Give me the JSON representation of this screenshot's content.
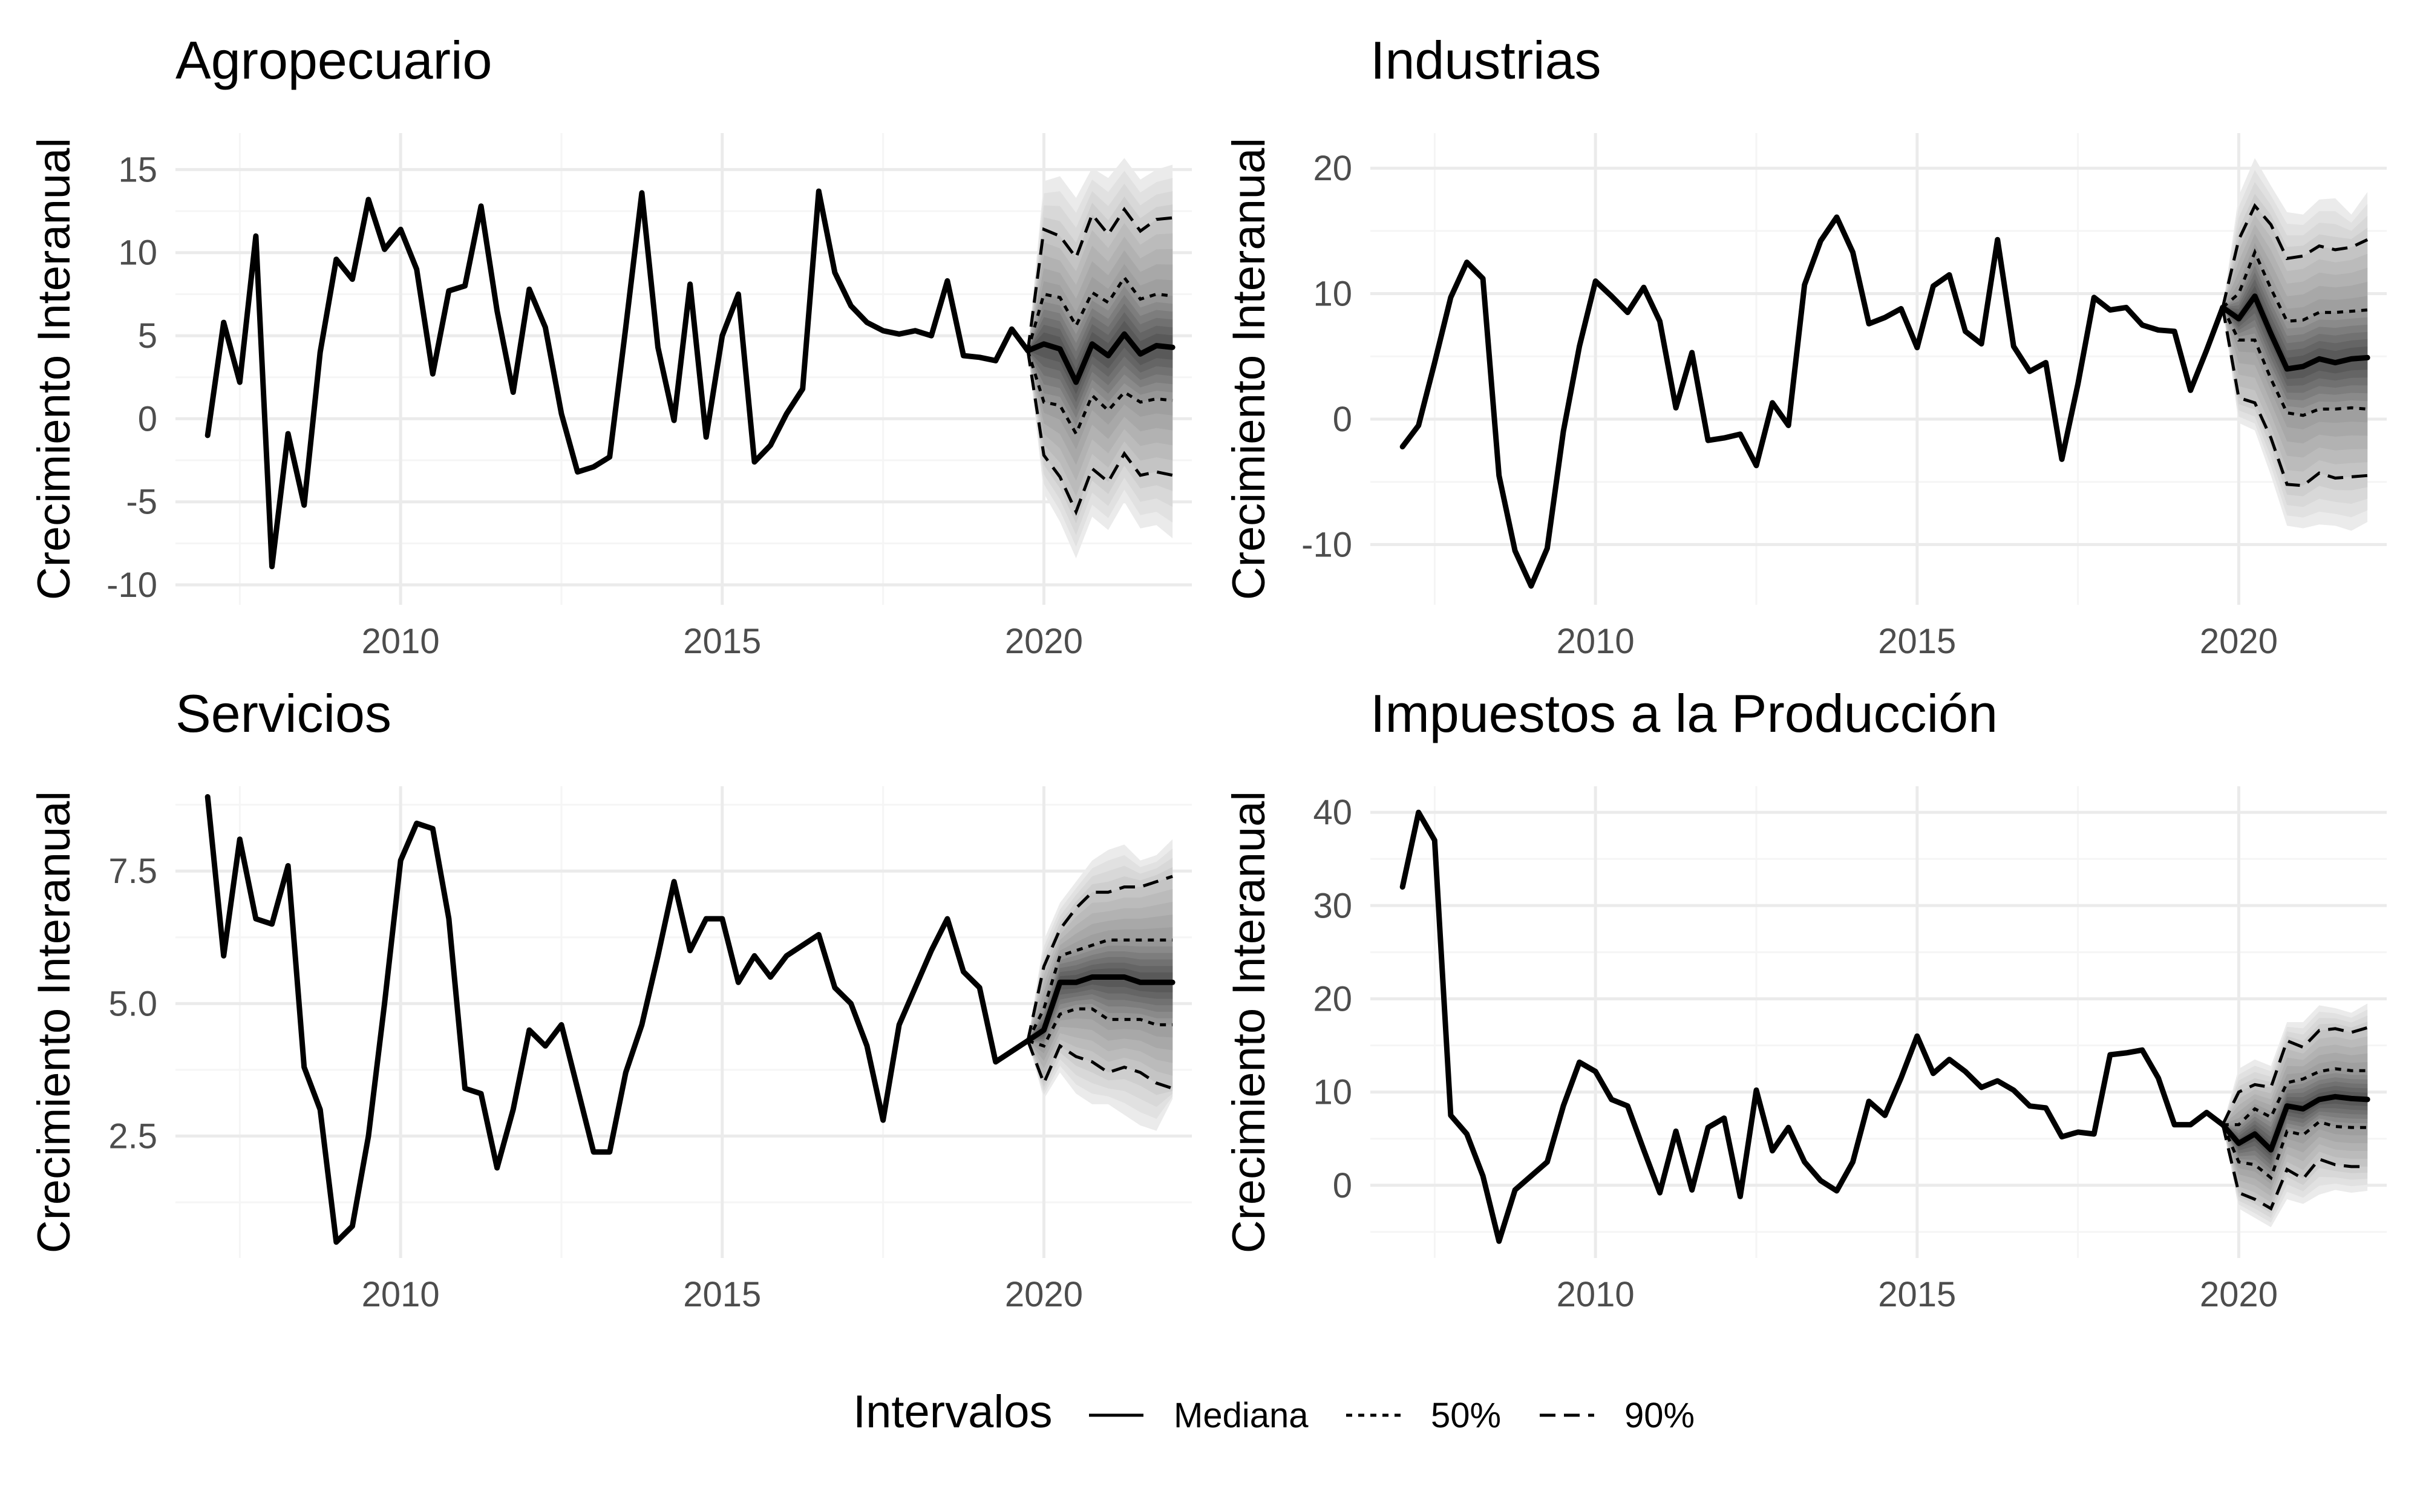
{
  "chart_data": [
    {
      "type": "line",
      "title": "Agropecuario",
      "ylabel": "Crecimiento Interanual",
      "xlabel": "",
      "xlim": [
        2006.5,
        2022.3
      ],
      "ylim": [
        -11.2,
        17.2
      ],
      "xticks": [
        2010,
        2015,
        2020
      ],
      "yticks": [
        -10,
        -5,
        0,
        5,
        10,
        15
      ],
      "grid": true,
      "historical": {
        "name": "Mediana",
        "x": [
          2007.0,
          2007.25,
          2007.5,
          2007.75,
          2008.0,
          2008.25,
          2008.5,
          2008.75,
          2009.0,
          2009.25,
          2009.5,
          2009.75,
          2010.0,
          2010.25,
          2010.5,
          2010.75,
          2011.0,
          2011.25,
          2011.5,
          2011.75,
          2012.0,
          2012.25,
          2012.5,
          2012.75,
          2013.0,
          2013.25,
          2013.5,
          2013.75,
          2014.0,
          2014.25,
          2014.5,
          2014.75,
          2015.0,
          2015.25,
          2015.5,
          2015.75,
          2016.0,
          2016.25,
          2016.5,
          2016.75,
          2017.0,
          2017.25,
          2017.5,
          2017.75,
          2018.0,
          2018.25,
          2018.5,
          2018.75,
          2019.0,
          2019.25,
          2019.5,
          2019.75
        ],
        "y": [
          -1.0,
          5.8,
          2.2,
          11.0,
          -8.9,
          -0.9,
          -5.2,
          4.0,
          9.6,
          8.4,
          13.2,
          10.2,
          11.4,
          9.0,
          2.7,
          7.7,
          8.0,
          12.8,
          6.5,
          1.6,
          7.8,
          5.5,
          0.3,
          -3.2,
          -2.9,
          -2.3,
          5.5,
          13.6,
          4.3,
          -0.1,
          8.1,
          -1.1,
          5.0,
          7.5,
          -2.6,
          -1.6,
          0.3,
          1.8,
          13.7,
          8.8,
          6.8,
          5.8,
          5.3,
          5.1,
          5.3,
          5.0,
          8.3,
          3.8,
          3.7,
          3.5,
          5.4,
          4.1
        ]
      },
      "forecast": {
        "x": [
          2019.75,
          2020.0,
          2020.25,
          2020.5,
          2020.75,
          2021.0,
          2021.25,
          2021.5,
          2021.75,
          2022.0
        ],
        "median": [
          4.1,
          4.5,
          4.2,
          2.2,
          4.5,
          3.8,
          5.1,
          3.9,
          4.4,
          4.3
        ],
        "lo50": [
          4.1,
          1.0,
          0.8,
          -0.9,
          1.4,
          0.5,
          1.6,
          1.0,
          1.2,
          1.1
        ],
        "hi50": [
          4.1,
          7.5,
          7.3,
          5.6,
          7.6,
          7.0,
          8.5,
          7.2,
          7.5,
          7.4
        ],
        "lo90": [
          4.1,
          -2.2,
          -3.5,
          -5.6,
          -3.0,
          -3.8,
          -2.1,
          -3.4,
          -3.2,
          -3.4
        ],
        "hi90": [
          4.1,
          11.4,
          11.0,
          9.7,
          12.3,
          11.1,
          12.6,
          11.3,
          12.0,
          12.1
        ],
        "lo_max": [
          4.1,
          -4.5,
          -6.2,
          -8.4,
          -5.9,
          -6.7,
          -5.0,
          -6.6,
          -6.4,
          -7.2
        ],
        "hi_max": [
          4.1,
          14.3,
          14.6,
          13.3,
          15.1,
          14.5,
          15.7,
          14.4,
          15.0,
          15.3
        ]
      }
    },
    {
      "type": "line",
      "title": "Industrias",
      "ylabel": "Crecimiento Interanual",
      "xlabel": "",
      "xlim": [
        2006.5,
        2022.3
      ],
      "ylim": [
        -14.8,
        22.8
      ],
      "xticks": [
        2010,
        2015,
        2020
      ],
      "yticks": [
        -10,
        0,
        10,
        20
      ],
      "grid": true,
      "historical": {
        "name": "Mediana",
        "x": [
          2007.0,
          2007.25,
          2007.5,
          2007.75,
          2008.0,
          2008.25,
          2008.5,
          2008.75,
          2009.0,
          2009.25,
          2009.5,
          2009.75,
          2010.0,
          2010.25,
          2010.5,
          2010.75,
          2011.0,
          2011.25,
          2011.5,
          2011.75,
          2012.0,
          2012.25,
          2012.5,
          2012.75,
          2013.0,
          2013.25,
          2013.5,
          2013.75,
          2014.0,
          2014.25,
          2014.5,
          2014.75,
          2015.0,
          2015.25,
          2015.5,
          2015.75,
          2016.0,
          2016.25,
          2016.5,
          2016.75,
          2017.0,
          2017.25,
          2017.5,
          2017.75,
          2018.0,
          2018.25,
          2018.5,
          2018.75,
          2019.0,
          2019.25,
          2019.5,
          2019.75
        ],
        "y": [
          -2.2,
          -0.5,
          4.5,
          9.7,
          12.5,
          11.2,
          -4.5,
          -10.5,
          -13.3,
          -10.3,
          -1.0,
          5.8,
          11.0,
          9.8,
          8.5,
          10.5,
          7.8,
          0.9,
          5.3,
          -1.7,
          -1.5,
          -1.2,
          -3.7,
          1.3,
          -0.5,
          10.7,
          14.2,
          16.1,
          13.3,
          7.6,
          8.1,
          8.8,
          5.7,
          10.6,
          11.5,
          7.0,
          6.0,
          14.3,
          5.8,
          3.8,
          4.5,
          -3.2,
          2.8,
          9.7,
          8.7,
          8.9,
          7.5,
          7.1,
          7.0,
          2.3,
          5.5,
          8.9
        ]
      },
      "forecast": {
        "x": [
          2019.75,
          2020.0,
          2020.25,
          2020.5,
          2020.75,
          2021.0,
          2021.25,
          2021.5,
          2021.75,
          2022.0
        ],
        "median": [
          8.9,
          8.0,
          9.8,
          6.8,
          4.0,
          4.2,
          4.8,
          4.5,
          4.8,
          4.9
        ],
        "lo50": [
          8.9,
          6.3,
          6.3,
          3.2,
          0.5,
          0.3,
          0.8,
          0.8,
          0.9,
          0.8
        ],
        "hi50": [
          8.9,
          10.0,
          13.3,
          10.4,
          7.8,
          7.9,
          8.5,
          8.5,
          8.6,
          8.7
        ],
        "lo90": [
          8.9,
          1.7,
          1.3,
          -1.5,
          -5.2,
          -5.3,
          -4.3,
          -4.7,
          -4.6,
          -4.5
        ],
        "hi90": [
          8.9,
          14.3,
          17.0,
          15.5,
          12.8,
          13.0,
          13.8,
          13.5,
          13.7,
          14.3
        ],
        "lo_max": [
          8.9,
          -0.3,
          -0.9,
          -4.5,
          -8.5,
          -8.7,
          -8.4,
          -8.5,
          -8.9,
          -8.2
        ],
        "hi_max": [
          8.9,
          17.8,
          20.8,
          18.6,
          16.5,
          16.3,
          17.5,
          17.6,
          16.3,
          18.1
        ]
      }
    },
    {
      "type": "line",
      "title": "Servicios",
      "ylabel": "Crecimiento Interanual",
      "xlabel": "",
      "xlim": [
        2006.5,
        2022.3
      ],
      "ylim": [
        0.2,
        9.1
      ],
      "xticks": [
        2010,
        2015,
        2020
      ],
      "yticks": [
        2.5,
        5.0,
        7.5
      ],
      "ytick_labels": [
        "2.5",
        "5.0",
        "7.5"
      ],
      "grid": true,
      "historical": {
        "name": "Mediana",
        "x": [
          2007.0,
          2007.25,
          2007.5,
          2007.75,
          2008.0,
          2008.25,
          2008.5,
          2008.75,
          2009.0,
          2009.25,
          2009.5,
          2009.75,
          2010.0,
          2010.25,
          2010.5,
          2010.75,
          2011.0,
          2011.25,
          2011.5,
          2011.75,
          2012.0,
          2012.25,
          2012.5,
          2012.75,
          2013.0,
          2013.25,
          2013.5,
          2013.75,
          2014.0,
          2014.25,
          2014.5,
          2014.75,
          2015.0,
          2015.25,
          2015.5,
          2015.75,
          2016.0,
          2016.25,
          2016.5,
          2016.75,
          2017.0,
          2017.25,
          2017.5,
          2017.75,
          2018.0,
          2018.25,
          2018.5,
          2018.75,
          2019.0,
          2019.25,
          2019.5,
          2019.75
        ],
        "y": [
          8.9,
          5.9,
          8.1,
          6.6,
          6.5,
          7.6,
          3.8,
          3.0,
          0.5,
          0.8,
          2.5,
          5.0,
          7.7,
          8.4,
          8.3,
          6.6,
          3.4,
          3.3,
          1.9,
          3.0,
          4.5,
          4.2,
          4.6,
          3.4,
          2.2,
          2.2,
          3.7,
          4.6,
          5.9,
          7.3,
          6.0,
          6.6,
          6.6,
          5.4,
          5.9,
          5.5,
          5.9,
          6.1,
          6.3,
          5.3,
          5.0,
          4.2,
          2.8,
          4.6,
          5.3,
          6.0,
          6.6,
          5.6,
          5.3,
          3.9,
          4.1,
          4.3
        ]
      },
      "forecast": {
        "x": [
          2019.75,
          2020.0,
          2020.25,
          2020.5,
          2020.75,
          2021.0,
          2021.25,
          2021.5,
          2021.75,
          2022.0
        ],
        "median": [
          4.3,
          4.5,
          5.4,
          5.4,
          5.5,
          5.5,
          5.5,
          5.4,
          5.4,
          5.4
        ],
        "lo50": [
          4.3,
          4.2,
          4.8,
          4.9,
          4.9,
          4.7,
          4.7,
          4.7,
          4.6,
          4.6
        ],
        "hi50": [
          4.3,
          4.9,
          5.9,
          6.0,
          6.1,
          6.2,
          6.2,
          6.2,
          6.2,
          6.2
        ],
        "lo90": [
          4.3,
          3.5,
          4.2,
          4.0,
          3.9,
          3.7,
          3.8,
          3.7,
          3.5,
          3.4
        ],
        "hi90": [
          4.3,
          5.7,
          6.4,
          6.8,
          7.1,
          7.1,
          7.2,
          7.2,
          7.3,
          7.4
        ],
        "lo_max": [
          4.3,
          3.2,
          3.7,
          3.3,
          3.1,
          3.1,
          2.9,
          2.7,
          2.6,
          3.2
        ],
        "hi_max": [
          4.3,
          6.2,
          6.9,
          7.3,
          7.7,
          7.9,
          8.0,
          7.7,
          7.8,
          8.1
        ]
      }
    },
    {
      "type": "line",
      "title": "Impuestos a la Producción",
      "ylabel": "Crecimiento Interanual",
      "xlabel": "",
      "xlim": [
        2006.5,
        2022.3
      ],
      "ylim": [
        -7.8,
        42.8
      ],
      "xticks": [
        2010,
        2015,
        2020
      ],
      "yticks": [
        0,
        10,
        20,
        30,
        40
      ],
      "grid": true,
      "historical": {
        "name": "Mediana",
        "x": [
          2007.0,
          2007.25,
          2007.5,
          2007.75,
          2008.0,
          2008.25,
          2008.5,
          2008.75,
          2009.0,
          2009.25,
          2009.5,
          2009.75,
          2010.0,
          2010.25,
          2010.5,
          2010.75,
          2011.0,
          2011.25,
          2011.5,
          2011.75,
          2012.0,
          2012.25,
          2012.5,
          2012.75,
          2013.0,
          2013.25,
          2013.5,
          2013.75,
          2014.0,
          2014.25,
          2014.5,
          2014.75,
          2015.0,
          2015.25,
          2015.5,
          2015.75,
          2016.0,
          2016.25,
          2016.5,
          2016.75,
          2017.0,
          2017.25,
          2017.5,
          2017.75,
          2018.0,
          2018.25,
          2018.5,
          2018.75,
          2019.0,
          2019.25,
          2019.5,
          2019.75
        ],
        "y": [
          32.0,
          40.0,
          37.0,
          7.5,
          5.5,
          1.0,
          -6.0,
          -0.5,
          1.0,
          2.5,
          8.5,
          13.2,
          12.2,
          9.2,
          8.5,
          3.8,
          -0.8,
          5.8,
          -0.5,
          6.2,
          7.2,
          -1.2,
          10.2,
          3.7,
          6.2,
          2.5,
          0.5,
          -0.6,
          2.5,
          9.0,
          7.5,
          11.5,
          16.0,
          12.0,
          13.5,
          12.2,
          10.5,
          11.2,
          10.2,
          8.5,
          8.3,
          5.2,
          5.7,
          5.5,
          14.0,
          14.2,
          14.5,
          11.5,
          6.5,
          6.5,
          7.8,
          6.5
        ]
      },
      "forecast": {
        "x": [
          2019.75,
          2020.0,
          2020.25,
          2020.5,
          2020.75,
          2021.0,
          2021.25,
          2021.5,
          2021.75,
          2022.0
        ],
        "median": [
          6.5,
          4.5,
          5.5,
          3.8,
          8.5,
          8.2,
          9.2,
          9.5,
          9.3,
          9.2
        ],
        "lo50": [
          6.5,
          2.5,
          2.2,
          0.8,
          5.8,
          5.4,
          6.8,
          6.3,
          6.2,
          6.2
        ],
        "hi50": [
          6.5,
          6.5,
          8.2,
          7.3,
          11.0,
          11.4,
          12.2,
          12.5,
          12.3,
          12.3
        ],
        "lo90": [
          6.5,
          -0.8,
          -1.5,
          -2.5,
          1.7,
          0.7,
          2.8,
          2.2,
          2.0,
          2.0
        ],
        "hi90": [
          6.5,
          10.0,
          10.8,
          10.5,
          15.5,
          14.8,
          16.6,
          16.8,
          16.4,
          16.9
        ],
        "lo_max": [
          6.5,
          -2.5,
          -3.5,
          -4.5,
          -1.5,
          -2.0,
          -1.0,
          -0.5,
          -0.8,
          -0.6
        ],
        "hi_max": [
          6.5,
          12.5,
          13.5,
          12.8,
          17.5,
          17.5,
          19.3,
          19.0,
          18.5,
          19.5
        ]
      }
    }
  ],
  "legend": {
    "title": "Intervalos",
    "items": [
      {
        "label": "Mediana",
        "style": "solid"
      },
      {
        "label": "50%",
        "style": "dotted"
      },
      {
        "label": "90%",
        "style": "dashed"
      }
    ]
  },
  "colors": {
    "line": "#000000",
    "grid_major": "#ebebeb",
    "grid_minor": "#f5f5f5",
    "tick_text": "#4d4d4d",
    "fan_outer": "#e6e6e6",
    "fan_mid": "#c9c9c9",
    "fan_50": "#9a9a9a",
    "fan_inner": "#5a5a5a"
  }
}
